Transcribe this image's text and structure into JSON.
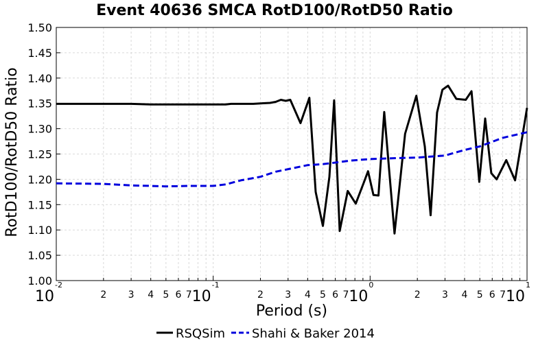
{
  "chart_data": {
    "type": "line",
    "title": "Event 40636 SMCA RotD100/RotD50 Ratio",
    "xlabel": "Period (s)",
    "ylabel": "RotD100/RotD50 Ratio",
    "xscale": "log",
    "xlim": [
      0.01,
      10
    ],
    "ylim": [
      1.0,
      1.5
    ],
    "yticks": [
      "1.00",
      "1.05",
      "1.10",
      "1.15",
      "1.20",
      "1.25",
      "1.30",
      "1.35",
      "1.40",
      "1.45",
      "1.50"
    ],
    "xticks_major": [
      {
        "value": 0.01,
        "base": "10",
        "exp": "-2"
      },
      {
        "value": 0.1,
        "base": "10",
        "exp": "-1"
      },
      {
        "value": 1,
        "base": "10",
        "exp": "0"
      },
      {
        "value": 10,
        "base": "10",
        "exp": "1"
      }
    ],
    "xticks_minor_labels": [
      "2",
      "3",
      "4",
      "5",
      "6",
      "7"
    ],
    "grid": true,
    "legend_position": "bottom",
    "series": [
      {
        "name": "RSQSim",
        "color": "#000000",
        "style": "solid",
        "points": [
          [
            0.01,
            1.349
          ],
          [
            0.013,
            1.349
          ],
          [
            0.02,
            1.349
          ],
          [
            0.03,
            1.349
          ],
          [
            0.04,
            1.348
          ],
          [
            0.06,
            1.348
          ],
          [
            0.08,
            1.348
          ],
          [
            0.1,
            1.348
          ],
          [
            0.12,
            1.348
          ],
          [
            0.13,
            1.349
          ],
          [
            0.15,
            1.349
          ],
          [
            0.18,
            1.349
          ],
          [
            0.2,
            1.35
          ],
          [
            0.23,
            1.351
          ],
          [
            0.25,
            1.353
          ],
          [
            0.27,
            1.357
          ],
          [
            0.29,
            1.355
          ],
          [
            0.31,
            1.357
          ],
          [
            0.36,
            1.311
          ],
          [
            0.41,
            1.361
          ],
          [
            0.45,
            1.175
          ],
          [
            0.5,
            1.108
          ],
          [
            0.55,
            1.205
          ],
          [
            0.59,
            1.356
          ],
          [
            0.64,
            1.098
          ],
          [
            0.72,
            1.177
          ],
          [
            0.81,
            1.152
          ],
          [
            0.92,
            1.197
          ],
          [
            0.97,
            1.216
          ],
          [
            1.05,
            1.169
          ],
          [
            1.13,
            1.168
          ],
          [
            1.23,
            1.333
          ],
          [
            1.43,
            1.093
          ],
          [
            1.67,
            1.29
          ],
          [
            1.97,
            1.365
          ],
          [
            2.23,
            1.265
          ],
          [
            2.43,
            1.129
          ],
          [
            2.67,
            1.332
          ],
          [
            2.89,
            1.377
          ],
          [
            3.14,
            1.385
          ],
          [
            3.54,
            1.359
          ],
          [
            4.07,
            1.357
          ],
          [
            4.43,
            1.374
          ],
          [
            4.96,
            1.195
          ],
          [
            5.41,
            1.32
          ],
          [
            5.92,
            1.212
          ],
          [
            6.4,
            1.2
          ],
          [
            7.37,
            1.238
          ],
          [
            8.39,
            1.198
          ],
          [
            10.0,
            1.341
          ]
        ]
      },
      {
        "name": "Shahi & Baker 2014",
        "color": "#0000dd",
        "style": "dashed",
        "points": [
          [
            0.01,
            1.192
          ],
          [
            0.02,
            1.191
          ],
          [
            0.03,
            1.188
          ],
          [
            0.04,
            1.187
          ],
          [
            0.05,
            1.186
          ],
          [
            0.07,
            1.187
          ],
          [
            0.1,
            1.187
          ],
          [
            0.12,
            1.19
          ],
          [
            0.15,
            1.198
          ],
          [
            0.2,
            1.205
          ],
          [
            0.25,
            1.215
          ],
          [
            0.3,
            1.22
          ],
          [
            0.4,
            1.228
          ],
          [
            0.5,
            1.23
          ],
          [
            0.6,
            1.233
          ],
          [
            0.75,
            1.237
          ],
          [
            1.0,
            1.24
          ],
          [
            1.5,
            1.242
          ],
          [
            2.0,
            1.243
          ],
          [
            3.0,
            1.247
          ],
          [
            4.0,
            1.258
          ],
          [
            5.0,
            1.265
          ],
          [
            7.0,
            1.282
          ],
          [
            10.0,
            1.293
          ]
        ]
      }
    ]
  }
}
